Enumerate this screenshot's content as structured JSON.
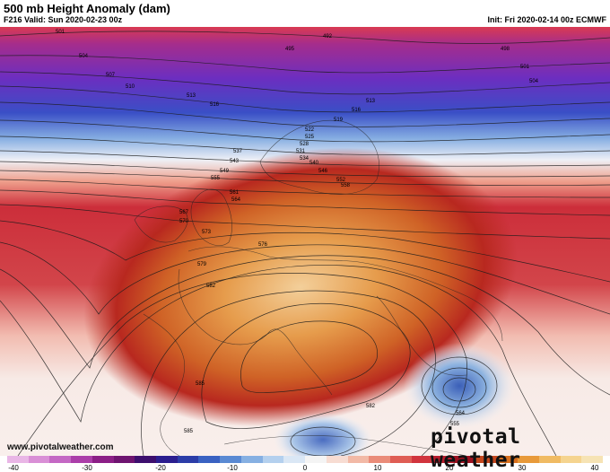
{
  "header": {
    "title": "500 mb Height Anomaly (dam)",
    "valid": "F216 Valid: Sun 2020-02-23 00z",
    "init": "Init: Fri 2020-02-14 00z ECMWF"
  },
  "footer": {
    "website": "www.pivotalweather.com",
    "brand": "pivotal weather"
  },
  "contour_labels": [
    "501",
    "504",
    "492",
    "495",
    "498",
    "501",
    "504",
    "507",
    "510",
    "513",
    "516",
    "513",
    "516",
    "519",
    "522",
    "525",
    "528",
    "531",
    "534",
    "537",
    "540",
    "543",
    "546",
    "549",
    "552",
    "555",
    "558",
    "561",
    "564",
    "567",
    "570",
    "573",
    "576",
    "579",
    "582",
    "585",
    "585",
    "582",
    "564",
    "555",
    "558"
  ],
  "colorbar": {
    "ticks": [
      "-40",
      "-30",
      "-20",
      "-10",
      "0",
      "10",
      "20",
      "30",
      "40"
    ],
    "colors": [
      "#e9b6e6",
      "#d98fd6",
      "#c468c4",
      "#ab3ea9",
      "#8b1f86",
      "#6e1470",
      "#3d0f6e",
      "#2b1e8f",
      "#2c3da8",
      "#3a62c2",
      "#5a8ad3",
      "#86b0e2",
      "#b4d0ee",
      "#dae7f5",
      "#f4f4f4",
      "#f7dcd2",
      "#f2b9a6",
      "#ea8c79",
      "#df5d54",
      "#d1343d",
      "#b91c2c",
      "#9c1120",
      "#c4471e",
      "#d8701f",
      "#e89a3a",
      "#f0bb63",
      "#f5d48f",
      "#f6e3b4"
    ]
  }
}
